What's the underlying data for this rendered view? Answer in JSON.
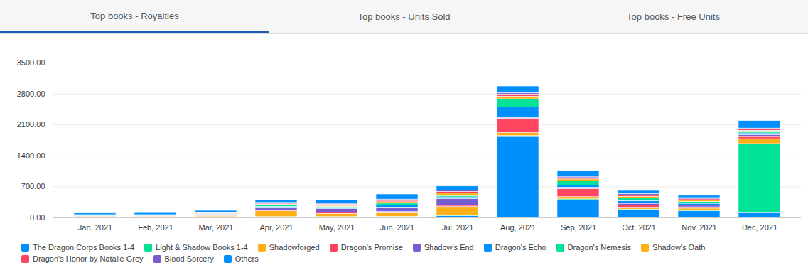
{
  "tabs": [
    {
      "label": "Top books - Royalties",
      "active": true
    },
    {
      "label": "Top books - Units Sold",
      "active": false
    },
    {
      "label": "Top books - Free Units",
      "active": false
    }
  ],
  "chart_data": {
    "type": "bar",
    "stacked": true,
    "grid": true,
    "legend": "bottom",
    "categories": [
      "Jan, 2021",
      "Feb, 2021",
      "Mar, 2021",
      "Apr, 2021",
      "May, 2021",
      "Jun, 2021",
      "Jul, 2021",
      "Aug, 2021",
      "Sep, 2021",
      "Oct, 2021",
      "Nov, 2021",
      "Dec, 2021"
    ],
    "ylim": [
      0,
      3500
    ],
    "yticks": [
      {
        "value": 0,
        "label": "0.00"
      },
      {
        "value": 700,
        "label": "700.00"
      },
      {
        "value": 1400,
        "label": "1400.00"
      },
      {
        "value": 2100,
        "label": "2100.00"
      },
      {
        "value": 2800,
        "label": "2800.00"
      },
      {
        "value": 3500,
        "label": "3500.00"
      }
    ],
    "series": [
      {
        "name": "The Dragon Corps Books 1-4",
        "color": "#008ffb",
        "values": [
          10,
          10,
          15,
          10,
          10,
          15,
          40,
          1830,
          400,
          170,
          150,
          110
        ]
      },
      {
        "name": "Light & Shadow Books 1-4",
        "color": "#00e396",
        "values": [
          5,
          5,
          5,
          10,
          10,
          10,
          15,
          20,
          20,
          20,
          20,
          1560
        ]
      },
      {
        "name": "Shadowforged",
        "color": "#feb019",
        "values": [
          15,
          15,
          20,
          130,
          70,
          80,
          190,
          70,
          50,
          40,
          40,
          110
        ]
      },
      {
        "name": "Dragon's Promise",
        "color": "#ff4560",
        "values": [
          5,
          5,
          10,
          20,
          30,
          30,
          30,
          320,
          180,
          50,
          30,
          50
        ]
      },
      {
        "name": "Shadow's End",
        "color": "#775dd0",
        "values": [
          5,
          5,
          10,
          60,
          80,
          100,
          150,
          20,
          30,
          40,
          40,
          40
        ]
      },
      {
        "name": "Dragon's Echo",
        "color": "#008ffb",
        "values": [
          5,
          5,
          10,
          20,
          30,
          50,
          40,
          240,
          50,
          60,
          40,
          40
        ]
      },
      {
        "name": "Dragon's Nemesis",
        "color": "#00e396",
        "values": [
          5,
          5,
          10,
          30,
          20,
          40,
          30,
          180,
          100,
          60,
          40,
          30
        ]
      },
      {
        "name": "Shadow's Oath",
        "color": "#feb019",
        "values": [
          5,
          5,
          10,
          20,
          20,
          30,
          60,
          60,
          40,
          40,
          30,
          30
        ]
      },
      {
        "name": "Dragon's Honor by Natalie Grey",
        "color": "#ff4560",
        "values": [
          5,
          5,
          10,
          20,
          30,
          30,
          30,
          50,
          30,
          30,
          30,
          30
        ]
      },
      {
        "name": "Blood Sorcery",
        "color": "#775dd0",
        "values": [
          5,
          5,
          10,
          20,
          20,
          30,
          30,
          30,
          30,
          30,
          30,
          20
        ]
      },
      {
        "name": "Others",
        "color": "#008ffb",
        "values": [
          35,
          45,
          50,
          60,
          70,
          115,
          95,
          150,
          130,
          70,
          50,
          170
        ]
      }
    ]
  }
}
